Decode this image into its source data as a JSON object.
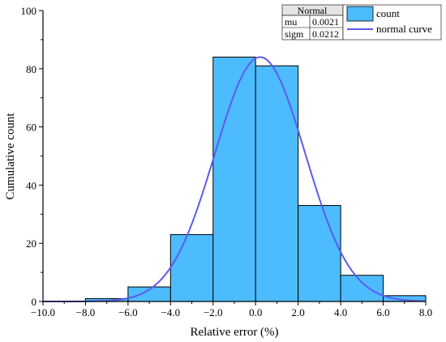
{
  "chart_data": {
    "type": "bar",
    "subtype": "histogram with fitted normal curve",
    "xlabel": "Relative error (%)",
    "ylabel": "Cumulative count",
    "xlim": [
      -10.0,
      8.0
    ],
    "ylim": [
      0,
      100
    ],
    "x_ticks": [
      -10.0,
      -8.0,
      -6.0,
      -4.0,
      -2.0,
      0.0,
      2.0,
      4.0,
      6.0,
      8.0
    ],
    "x_tick_labels": [
      "−10.0",
      "−8.0",
      "−6.0",
      "−4.0",
      "−2.0",
      "0.0",
      "2.0",
      "4.0",
      "6.0",
      "8.0"
    ],
    "y_ticks": [
      0,
      20,
      40,
      60,
      80,
      100
    ],
    "y_tick_labels": [
      "0",
      "20",
      "40",
      "60",
      "80",
      "100"
    ],
    "bins": [
      {
        "x0": -8,
        "x1": -6,
        "value": 1
      },
      {
        "x0": -6,
        "x1": -4,
        "value": 5
      },
      {
        "x0": -4,
        "x1": -2,
        "value": 23
      },
      {
        "x0": -2,
        "x1": 0,
        "value": 84
      },
      {
        "x0": 0,
        "x1": 2,
        "value": 81
      },
      {
        "x0": 2,
        "x1": 4,
        "value": 33
      },
      {
        "x0": 4,
        "x1": 6,
        "value": 9
      },
      {
        "x0": 6,
        "x1": 8,
        "value": 2
      }
    ],
    "normal_curve": {
      "mean": 0.21,
      "std": 2.12,
      "peak": 84
    },
    "stats_table": {
      "title": "Normal",
      "rows": [
        {
          "label": "mu",
          "value": "0.0021"
        },
        {
          "label": "sigm",
          "value": "0.0212"
        }
      ]
    },
    "legend": {
      "placement": "top-right",
      "items": [
        {
          "label": "count",
          "kind": "bar"
        },
        {
          "label": "normal curve",
          "kind": "line"
        }
      ]
    },
    "colors": {
      "bar_fill": "#4dbcff",
      "bar_edge": "#000000",
      "curve": "#5b5bf0"
    },
    "grid": false
  }
}
